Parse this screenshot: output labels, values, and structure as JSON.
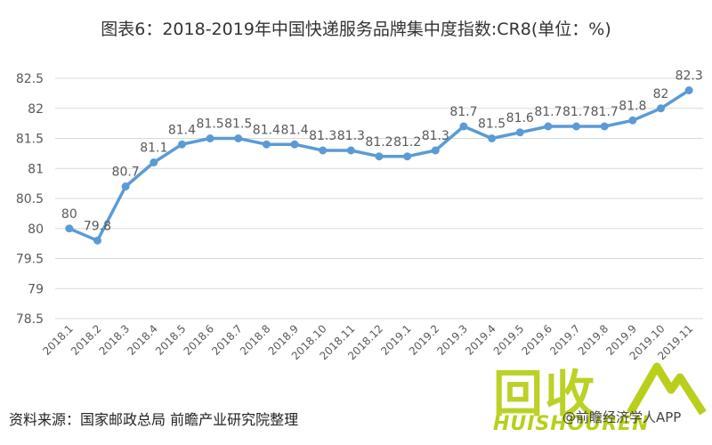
{
  "header": {
    "title": "图表6：2018-2019年中国快递服务品牌集中度指数:CR8(单位：%)"
  },
  "footer": {
    "source": "资料来源：国家邮政总局 前瞻产业研究院整理",
    "credit": "@前瞻经济学人APP"
  },
  "logo": {
    "text": "回收",
    "subtext": "HUISHOUREN"
  },
  "colors": {
    "line": "#5b9bd5",
    "grid": "#d9d9d9",
    "text": "#595959",
    "logo": "#b9cf1b"
  },
  "chart_data": {
    "type": "line",
    "title": "图表6：2018-2019年中国快递服务品牌集中度指数:CR8(单位：%)",
    "categories": [
      "2018.1",
      "2018.2",
      "2018.3",
      "2018.4",
      "2018.5",
      "2018.6",
      "2018.7",
      "2018.8",
      "2018.9",
      "2018.10",
      "2018.11",
      "2018.12",
      "2019.1",
      "2019.2",
      "2019.3",
      "2019.4",
      "2019.5",
      "2019.6",
      "2019.7",
      "2019.8",
      "2019.9",
      "2019.10",
      "2019.11"
    ],
    "values": [
      80,
      79.8,
      80.7,
      81.1,
      81.4,
      81.5,
      81.5,
      81.4,
      81.4,
      81.3,
      81.3,
      81.2,
      81.2,
      81.3,
      81.7,
      81.5,
      81.6,
      81.7,
      81.7,
      81.7,
      81.8,
      82,
      82.3
    ],
    "data_labels": [
      "80",
      "79.8",
      "80.7",
      "81.1",
      "81.4",
      "81.5",
      "81.5",
      "81.4",
      "81.4",
      "81.3",
      "81.3",
      "81.2",
      "81.2",
      "81.3",
      "81.7",
      "81.5",
      "81.6",
      "81.7",
      "81.7",
      "81.7",
      "81.8",
      "82",
      "82.3"
    ],
    "y_ticks": [
      "78.5",
      "79",
      "79.5",
      "80",
      "80.5",
      "81",
      "81.5",
      "82",
      "82.5"
    ],
    "ylim": [
      78.5,
      82.5
    ],
    "xlabel": "",
    "ylabel": "",
    "grid": true,
    "legend": "none"
  }
}
